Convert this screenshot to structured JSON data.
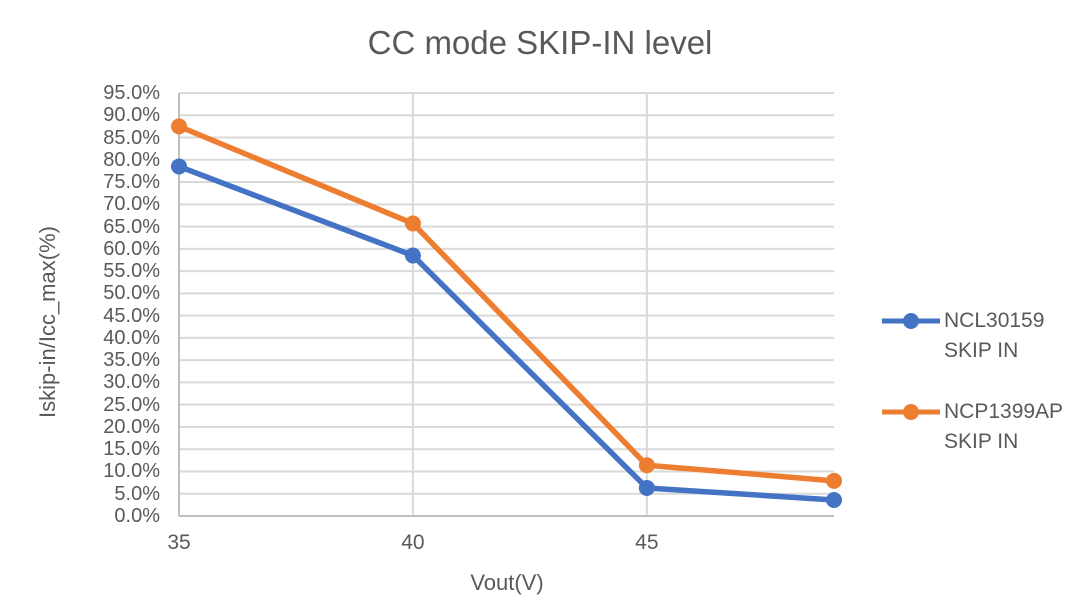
{
  "chart_data": {
    "type": "line",
    "title": "CC mode SKIP-IN level",
    "xlabel": "Vout(V)",
    "ylabel": "Iskip-in/Icc_max(%)",
    "x": [
      35,
      40,
      45,
      49
    ],
    "series": [
      {
        "name": "NCL30159 SKIP IN",
        "legend_lines": [
          "NCL30159",
          "SKIP IN"
        ],
        "color": "#4472C4",
        "values": [
          78.5,
          58.5,
          6.3,
          3.6
        ]
      },
      {
        "name": "NCP1399AP SKIP IN",
        "legend_lines": [
          "NCP1399AP",
          "SKIP IN"
        ],
        "color": "#ED7D31",
        "values": [
          87.5,
          65.7,
          11.4,
          7.9
        ]
      }
    ],
    "xlim": [
      35,
      49
    ],
    "ylim": [
      0,
      95
    ],
    "xtick_values": [
      35,
      40,
      45
    ],
    "xtick_labels": [
      "35",
      "40",
      "45"
    ],
    "ytick_values": [
      95,
      90,
      85,
      80,
      75,
      70,
      65,
      60,
      55,
      50,
      45,
      40,
      35,
      30,
      25,
      20,
      15,
      10,
      5,
      0
    ],
    "ytick_labels": [
      "95.0%",
      "90.0%",
      "85.0%",
      "80.0%",
      "75.0%",
      "70.0%",
      "65.0%",
      "60.0%",
      "55.0%",
      "50.0%",
      "45.0%",
      "40.0%",
      "35.0%",
      "30.0%",
      "25.0%",
      "20.0%",
      "15.0%",
      "10.0%",
      "5.0%",
      "0.0%"
    ],
    "grid": true,
    "legend_position": "right"
  },
  "colors": {
    "background": "#FFFFFF",
    "text": "#595959",
    "gridline": "#D9D9D9",
    "axis_line": "#BFBFBF"
  }
}
